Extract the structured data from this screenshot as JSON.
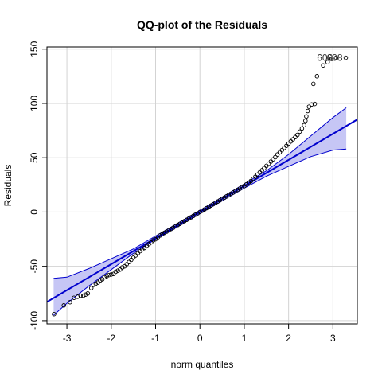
{
  "chart_data": {
    "type": "scatter",
    "title": "QQ-plot of the Residuals",
    "xlabel": "norm quantiles",
    "ylabel": "Residuals",
    "xlim": [
      -3.45,
      3.55
    ],
    "ylim": [
      -103,
      152
    ],
    "x_ticks": [
      -3,
      -2,
      -1,
      0,
      1,
      2,
      3
    ],
    "y_ticks": [
      -100,
      -50,
      0,
      50,
      100,
      150
    ],
    "grid": true,
    "colors": {
      "points": "#000000",
      "line": "#0000cd",
      "band_fill": "#c6c6f5",
      "band_edge": "#0000cd",
      "grid": "#d3d3d3",
      "frame": "#000000"
    },
    "reference_line": {
      "intercept": 0,
      "slope": 24
    },
    "envelope": {
      "x": [
        -3.3,
        -3.0,
        -2.5,
        -2.0,
        -1.5,
        -1.0,
        0.0,
        1.0,
        1.5,
        2.0,
        2.5,
        3.0,
        3.3
      ],
      "lower": [
        -95,
        -84,
        -68,
        -53,
        -38,
        -25,
        -1.5,
        22,
        33,
        42,
        51,
        57,
        58
      ],
      "upper": [
        -61,
        -60,
        -52,
        -43,
        -34,
        -22,
        1.5,
        26,
        38,
        53,
        70,
        87,
        96
      ]
    },
    "point_labels": [
      "608",
      "608"
    ],
    "series": [
      {
        "points": [
          [
            -3.29,
            -94.0
          ],
          [
            -3.07,
            -86.0
          ],
          [
            -2.93,
            -83.0
          ],
          [
            -2.84,
            -79.0
          ],
          [
            -2.76,
            -78.0
          ],
          [
            -2.69,
            -77.0
          ],
          [
            -2.63,
            -77.0
          ],
          [
            -2.58,
            -76.0
          ],
          [
            -2.53,
            -75.0
          ],
          [
            -2.45,
            -70.0
          ],
          [
            -2.4,
            -67.0
          ],
          [
            -2.35,
            -66.0
          ],
          [
            -2.3,
            -65.0
          ],
          [
            -2.25,
            -63.0
          ],
          [
            -2.2,
            -62.0
          ],
          [
            -2.15,
            -60.0
          ],
          [
            -2.1,
            -59.0
          ],
          [
            -2.05,
            -58.0
          ],
          [
            -2.0,
            -57.5
          ],
          [
            -1.95,
            -57.0
          ],
          [
            -1.9,
            -55.0
          ],
          [
            -1.85,
            -54.0
          ],
          [
            -1.8,
            -53.0
          ],
          [
            -1.75,
            -51.0
          ],
          [
            -1.7,
            -50.0
          ],
          [
            -1.65,
            -48.0
          ],
          [
            -1.6,
            -46.0
          ],
          [
            -1.55,
            -44.0
          ],
          [
            -1.5,
            -42.0
          ],
          [
            -1.45,
            -40.0
          ],
          [
            -1.4,
            -38.0
          ],
          [
            -1.35,
            -36.0
          ],
          [
            -1.3,
            -34.5
          ],
          [
            -1.25,
            -33.0
          ],
          [
            -1.2,
            -31.0
          ],
          [
            -1.15,
            -29.5
          ],
          [
            -1.1,
            -28.0
          ],
          [
            -1.05,
            -26.0
          ],
          [
            -1.0,
            -25.0
          ],
          [
            -0.95,
            -23.3
          ],
          [
            -0.9,
            -21.6
          ],
          [
            -0.85,
            -20.4
          ],
          [
            -0.8,
            -19.2
          ],
          [
            -0.75,
            -18.0
          ],
          [
            -0.7,
            -16.8
          ],
          [
            -0.65,
            -15.6
          ],
          [
            -0.6,
            -14.4
          ],
          [
            -0.55,
            -13.2
          ],
          [
            -0.5,
            -12.0
          ],
          [
            -0.45,
            -10.8
          ],
          [
            -0.4,
            -9.6
          ],
          [
            -0.35,
            -8.4
          ],
          [
            -0.3,
            -7.2
          ],
          [
            -0.25,
            -6.0
          ],
          [
            -0.2,
            -4.8
          ],
          [
            -0.15,
            -3.6
          ],
          [
            -0.1,
            -2.4
          ],
          [
            -0.05,
            -1.2
          ],
          [
            0.0,
            0.0
          ],
          [
            0.05,
            1.2
          ],
          [
            0.1,
            2.4
          ],
          [
            0.15,
            3.6
          ],
          [
            0.2,
            4.8
          ],
          [
            0.25,
            6.0
          ],
          [
            0.3,
            7.2
          ],
          [
            0.35,
            8.4
          ],
          [
            0.4,
            9.6
          ],
          [
            0.45,
            10.8
          ],
          [
            0.5,
            12.0
          ],
          [
            0.55,
            13.2
          ],
          [
            0.6,
            14.4
          ],
          [
            0.65,
            15.6
          ],
          [
            0.7,
            16.8
          ],
          [
            0.75,
            18.0
          ],
          [
            0.8,
            19.2
          ],
          [
            0.85,
            20.4
          ],
          [
            0.9,
            21.6
          ],
          [
            0.95,
            22.8
          ],
          [
            1.0,
            24.0
          ],
          [
            1.05,
            25.5
          ],
          [
            1.1,
            27.0
          ],
          [
            1.15,
            28.5
          ],
          [
            1.2,
            30.5
          ],
          [
            1.25,
            32.5
          ],
          [
            1.3,
            34.5
          ],
          [
            1.35,
            36.5
          ],
          [
            1.4,
            38.5
          ],
          [
            1.45,
            40.5
          ],
          [
            1.5,
            42.5
          ],
          [
            1.55,
            44.5
          ],
          [
            1.6,
            46.5
          ],
          [
            1.65,
            48.5
          ],
          [
            1.7,
            50.5
          ],
          [
            1.75,
            53.0
          ],
          [
            1.8,
            55.0
          ],
          [
            1.85,
            57.0
          ],
          [
            1.9,
            59.0
          ],
          [
            1.95,
            61.0
          ],
          [
            2.0,
            63.0
          ],
          [
            2.05,
            65.0
          ],
          [
            2.1,
            67.0
          ],
          [
            2.15,
            69.0
          ],
          [
            2.2,
            71.0
          ],
          [
            2.25,
            74.0
          ],
          [
            2.3,
            77.0
          ],
          [
            2.35,
            80.0
          ],
          [
            2.38,
            84.0
          ],
          [
            2.4,
            88.0
          ],
          [
            2.43,
            93.0
          ],
          [
            2.46,
            97.0
          ],
          [
            2.52,
            99.0
          ],
          [
            2.59,
            99.5
          ],
          [
            2.56,
            118.0
          ],
          [
            2.64,
            125.0
          ],
          [
            2.78,
            135.0
          ],
          [
            2.88,
            138.0
          ],
          [
            2.97,
            141.0
          ],
          [
            3.07,
            142.0
          ],
          [
            3.29,
            142.0
          ]
        ]
      }
    ]
  }
}
